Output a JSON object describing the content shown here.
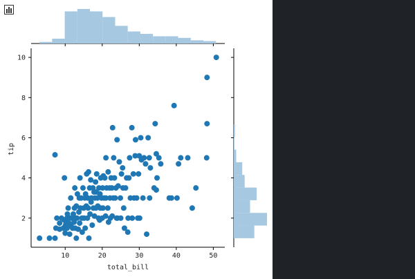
{
  "colors": {
    "scatter": "#1f77b4",
    "hist": "#a6c8e0",
    "axis": "#000000",
    "background": "#ffffff",
    "outer": "#1f2227"
  },
  "toolbar": {
    "icon": "bar-chart-icon"
  },
  "chart_data": {
    "type": "scatter",
    "subtype": "jointplot",
    "xlabel": "total_bill",
    "ylabel": "tip",
    "xlim": [
      0.8,
      53.1
    ],
    "ylim": [
      0.55,
      10.45
    ],
    "xticks": [
      10,
      20,
      30,
      40,
      50
    ],
    "yticks": [
      2,
      4,
      6,
      8,
      10
    ],
    "grid": false,
    "points": [
      [
        3.07,
        1.0
      ],
      [
        5.75,
        1.0
      ],
      [
        7.25,
        1.0
      ],
      [
        7.25,
        5.15
      ],
      [
        7.5,
        1.5
      ],
      [
        7.75,
        2.0
      ],
      [
        8.5,
        1.45
      ],
      [
        8.5,
        1.75
      ],
      [
        9.0,
        2.0
      ],
      [
        9.5,
        1.5
      ],
      [
        9.75,
        1.9
      ],
      [
        9.8,
        4.0
      ],
      [
        10.0,
        1.25
      ],
      [
        10.0,
        1.6
      ],
      [
        10.2,
        1.7
      ],
      [
        10.3,
        1.8
      ],
      [
        10.5,
        2.0
      ],
      [
        10.5,
        1.5
      ],
      [
        10.6,
        2.2
      ],
      [
        10.8,
        2.5
      ],
      [
        11.0,
        1.75
      ],
      [
        11.2,
        1.2
      ],
      [
        11.3,
        2.0
      ],
      [
        11.5,
        3.0
      ],
      [
        11.6,
        1.6
      ],
      [
        11.8,
        2.0
      ],
      [
        12.0,
        1.5
      ],
      [
        12.2,
        2.2
      ],
      [
        12.4,
        1.8
      ],
      [
        12.5,
        2.5
      ],
      [
        12.6,
        3.5
      ],
      [
        12.7,
        1.5
      ],
      [
        12.9,
        2.0
      ],
      [
        13.0,
        2.6
      ],
      [
        13.0,
        1.0
      ],
      [
        13.2,
        2.0
      ],
      [
        13.3,
        3.2
      ],
      [
        13.5,
        1.45
      ],
      [
        13.7,
        2.3
      ],
      [
        13.8,
        3.0
      ],
      [
        13.9,
        1.75
      ],
      [
        14.0,
        4.0
      ],
      [
        14.1,
        2.5
      ],
      [
        14.3,
        3.0
      ],
      [
        14.5,
        2.0
      ],
      [
        14.6,
        1.3
      ],
      [
        14.8,
        3.5
      ],
      [
        15.0,
        2.5
      ],
      [
        15.1,
        2.0
      ],
      [
        15.3,
        3.0
      ],
      [
        15.4,
        1.5
      ],
      [
        15.5,
        3.2
      ],
      [
        15.7,
        2.6
      ],
      [
        15.8,
        4.2
      ],
      [
        16.0,
        2.0
      ],
      [
        16.1,
        3.0
      ],
      [
        16.2,
        2.5
      ],
      [
        16.3,
        4.3
      ],
      [
        16.4,
        1.0
      ],
      [
        16.6,
        3.5
      ],
      [
        16.7,
        2.2
      ],
      [
        16.9,
        3.9
      ],
      [
        17.0,
        2.8
      ],
      [
        17.1,
        3.0
      ],
      [
        17.3,
        1.65
      ],
      [
        17.5,
        3.5
      ],
      [
        17.6,
        2.5
      ],
      [
        17.8,
        3.3
      ],
      [
        17.9,
        2.1
      ],
      [
        18.0,
        3.0
      ],
      [
        18.2,
        3.8
      ],
      [
        18.3,
        2.5
      ],
      [
        18.4,
        3.3
      ],
      [
        18.5,
        4.2
      ],
      [
        18.7,
        3.0
      ],
      [
        18.8,
        2.6
      ],
      [
        19.0,
        2.0
      ],
      [
        19.1,
        3.5
      ],
      [
        19.3,
        1.9
      ],
      [
        19.4,
        3.2
      ],
      [
        19.5,
        2.5
      ],
      [
        19.6,
        4.0
      ],
      [
        19.8,
        3.0
      ],
      [
        20.0,
        2.0
      ],
      [
        20.1,
        3.5
      ],
      [
        20.2,
        2.5
      ],
      [
        20.3,
        4.1
      ],
      [
        20.5,
        3.0
      ],
      [
        20.7,
        4.0
      ],
      [
        20.9,
        2.1
      ],
      [
        21.0,
        3.0
      ],
      [
        21.0,
        5.0
      ],
      [
        21.2,
        3.5
      ],
      [
        21.5,
        2.5
      ],
      [
        21.6,
        4.3
      ],
      [
        21.7,
        1.8
      ],
      [
        22.0,
        3.5
      ],
      [
        22.1,
        3.0
      ],
      [
        22.2,
        2.0
      ],
      [
        22.4,
        4.0
      ],
      [
        22.6,
        3.5
      ],
      [
        22.7,
        2.1
      ],
      [
        22.8,
        6.5
      ],
      [
        23.0,
        3.0
      ],
      [
        23.1,
        5.0
      ],
      [
        23.3,
        4.0
      ],
      [
        23.5,
        3.0
      ],
      [
        23.7,
        3.5
      ],
      [
        23.9,
        2.0
      ],
      [
        24.0,
        5.9
      ],
      [
        24.1,
        2.0
      ],
      [
        24.3,
        3.6
      ],
      [
        24.6,
        4.8
      ],
      [
        24.9,
        3.0
      ],
      [
        25.0,
        2.0
      ],
      [
        25.2,
        4.2
      ],
      [
        25.5,
        4.5
      ],
      [
        25.6,
        3.5
      ],
      [
        25.8,
        2.5
      ],
      [
        26.0,
        1.5
      ],
      [
        26.3,
        3.5
      ],
      [
        26.6,
        4.0
      ],
      [
        26.9,
        1.3
      ],
      [
        27.0,
        2.0
      ],
      [
        27.2,
        4.0
      ],
      [
        27.4,
        5.0
      ],
      [
        27.6,
        3.0
      ],
      [
        28.0,
        6.5
      ],
      [
        28.1,
        2.0
      ],
      [
        28.4,
        4.2
      ],
      [
        28.6,
        3.0
      ],
      [
        28.9,
        5.1
      ],
      [
        29.0,
        5.9
      ],
      [
        29.3,
        3.0
      ],
      [
        29.6,
        2.0
      ],
      [
        29.8,
        4.2
      ],
      [
        30.0,
        5.1
      ],
      [
        30.1,
        2.0
      ],
      [
        30.4,
        6.0
      ],
      [
        30.6,
        4.9
      ],
      [
        31.0,
        3.0
      ],
      [
        31.3,
        5.0
      ],
      [
        31.7,
        4.7
      ],
      [
        32.0,
        1.2
      ],
      [
        32.4,
        6.0
      ],
      [
        32.7,
        5.0
      ],
      [
        32.8,
        3.0
      ],
      [
        33.0,
        4.5
      ],
      [
        34.0,
        3.5
      ],
      [
        34.3,
        6.7
      ],
      [
        34.6,
        5.2
      ],
      [
        34.6,
        3.4
      ],
      [
        34.8,
        4.0
      ],
      [
        35.3,
        5.0
      ],
      [
        35.8,
        4.7
      ],
      [
        38.1,
        3.0
      ],
      [
        38.7,
        3.0
      ],
      [
        39.4,
        7.6
      ],
      [
        40.2,
        3.0
      ],
      [
        40.6,
        4.7
      ],
      [
        41.2,
        5.0
      ],
      [
        43.1,
        5.0
      ],
      [
        44.3,
        2.5
      ],
      [
        45.3,
        3.5
      ],
      [
        48.2,
        5.0
      ],
      [
        48.3,
        6.7
      ],
      [
        48.3,
        9.0
      ],
      [
        50.8,
        10.0
      ]
    ],
    "marginal_x": {
      "bin_edges": [
        3.07,
        6.47,
        9.88,
        13.28,
        16.68,
        20.09,
        23.49,
        26.89,
        30.3,
        33.7,
        37.1,
        40.51,
        43.91,
        47.31,
        50.72
      ],
      "counts": [
        2,
        6,
        40,
        43,
        40,
        33,
        22,
        15,
        12,
        9,
        9,
        7,
        4,
        3
      ]
    },
    "marginal_y": {
      "bin_edges": [
        1.0,
        1.63,
        2.26,
        2.89,
        3.52,
        4.15,
        4.78,
        5.41,
        6.04,
        6.67,
        7.3,
        7.93,
        8.56,
        9.19,
        9.82
      ],
      "counts": [
        34,
        55,
        27,
        38,
        18,
        14,
        4,
        1,
        2,
        0,
        0,
        0,
        0,
        0
      ]
    }
  }
}
